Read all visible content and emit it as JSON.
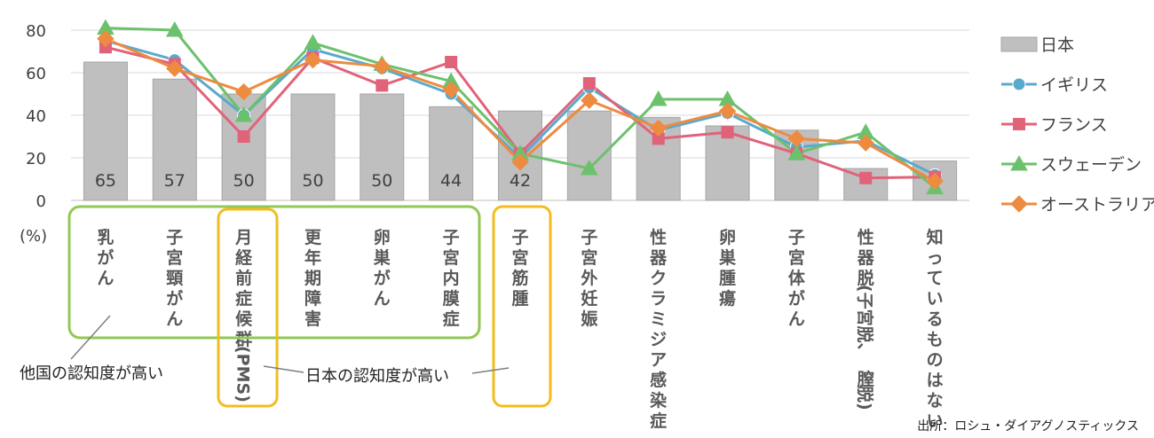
{
  "chart_data": {
    "type": "bar",
    "unit_label": "(%)",
    "ylim": [
      0,
      80
    ],
    "yticks": [
      0,
      20,
      40,
      60,
      80
    ],
    "grid": true,
    "legend_position": "right",
    "categories": [
      "乳がん",
      "子宮頸がん",
      "月経前症候群(PMS)",
      "更年期障害",
      "卵巣がん",
      "子宮内膜症",
      "子宮筋腫",
      "子宮外妊娠",
      "性器クラミジア感染症",
      "卵巣腫瘍",
      "子宮体がん",
      "性器脱(子宮脱、膣脱)",
      "知っているものはない"
    ],
    "category_lines": [
      [
        "乳",
        "が",
        "ん"
      ],
      [
        "子",
        "宮",
        "頸",
        "が",
        "ん"
      ],
      [
        "月",
        "経",
        "前",
        "症",
        "候",
        "群",
        "(PMS)"
      ],
      [
        "更",
        "年",
        "期",
        "障",
        "害"
      ],
      [
        "卵",
        "巣",
        "が",
        "ん"
      ],
      [
        "子",
        "宮",
        "内",
        "膜",
        "症"
      ],
      [
        "子",
        "宮",
        "筋",
        "腫"
      ],
      [
        "子",
        "宮",
        "外",
        "妊",
        "娠"
      ],
      [
        "性",
        "器",
        "ク",
        "ラ",
        "ミ",
        "ジ",
        "ア",
        "感",
        "染",
        "症"
      ],
      [
        "卵",
        "巣",
        "腫",
        "瘍"
      ],
      [
        "子",
        "宮",
        "体",
        "が",
        "ん"
      ],
      [
        "性",
        "器",
        "脱",
        "(子宮脱、",
        "膣",
        "脱)"
      ],
      [
        "知",
        "っ",
        "て",
        "い",
        "る",
        "も",
        "の",
        "は",
        "な",
        "い"
      ]
    ],
    "series": [
      {
        "name": "日本",
        "kind": "bar",
        "color": "#bfbfbf",
        "values": [
          65,
          57,
          50,
          50,
          50,
          44,
          42,
          42,
          39,
          35,
          33,
          15,
          18.5
        ]
      },
      {
        "name": "イギリス",
        "kind": "line",
        "marker": "circle",
        "color": "#5ba9cc",
        "values": [
          75,
          66,
          40,
          71,
          62,
          50,
          20,
          53,
          33,
          41,
          25,
          28,
          12
        ]
      },
      {
        "name": "フランス",
        "kind": "line",
        "marker": "square",
        "color": "#e0637a",
        "values": [
          72,
          64,
          30,
          67,
          54,
          65,
          22,
          55,
          29,
          32,
          22,
          10.5,
          11
        ]
      },
      {
        "name": "スウェーデン",
        "kind": "line",
        "marker": "triangle",
        "color": "#6cc16c",
        "values": [
          81,
          80,
          40,
          74,
          64,
          56,
          22,
          15,
          47.5,
          47.5,
          22,
          32,
          6
        ]
      },
      {
        "name": "オーストラリア",
        "kind": "line",
        "marker": "diamond",
        "color": "#ed8b41",
        "values": [
          76,
          62,
          51,
          66,
          63,
          52,
          18,
          47,
          34,
          42,
          29,
          27,
          9
        ]
      }
    ],
    "data_labels": [
      "65",
      "57",
      "50",
      "50",
      "50",
      "44",
      "42"
    ],
    "annotations": {
      "others_higher": "他国の認知度が高い",
      "japan_higher": "日本の認知度が高い",
      "green_color": "#92c854",
      "yellow_color": "#f1bd21"
    },
    "source": "出所：ロシュ・ダイアグノスティックス"
  }
}
